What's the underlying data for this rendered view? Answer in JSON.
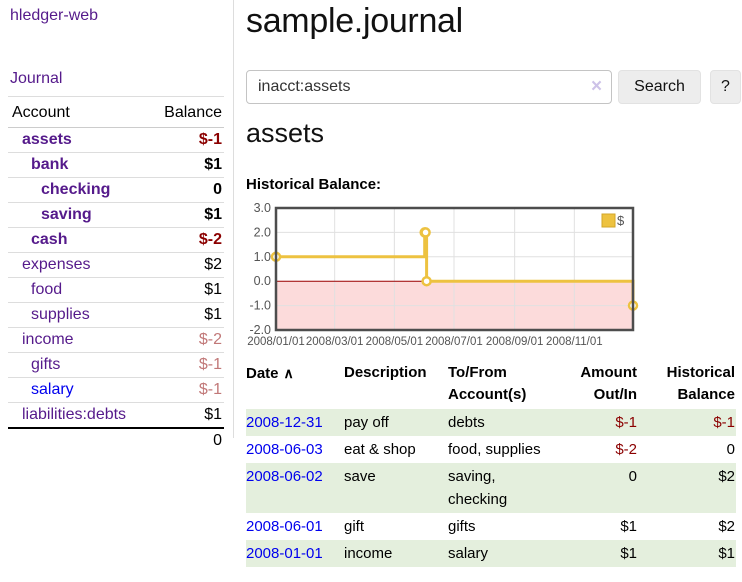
{
  "colors": {
    "link_purple": "#551a8b",
    "link_blue": "#0000ee",
    "neg_strong": "#8b0000",
    "neg_soft": "#c17878",
    "row_green": "#e4efdd",
    "grid": "#e0e0e0",
    "axis_text": "#545454",
    "plot_border": "#4d4d4d",
    "zero_line": "#990000",
    "neg_region": "#fcdbdb",
    "chart_gold": "#edc240",
    "chart_gold_border": "#d2a628"
  },
  "sidebar": {
    "brand": "hledger-web",
    "nav": [
      {
        "label": "Journal"
      }
    ],
    "accounts_table": {
      "col_account": "Account",
      "col_balance": "Balance",
      "rows": [
        {
          "account": "assets",
          "balance": "$-1",
          "level": 1,
          "emph": true,
          "balance_style": "neg_strong"
        },
        {
          "account": "bank",
          "balance": "$1",
          "level": 2,
          "emph": true,
          "balance_style": "normal"
        },
        {
          "account": "checking",
          "balance": "0",
          "level": 3,
          "emph": true,
          "balance_style": "normal"
        },
        {
          "account": "saving",
          "balance": "$1",
          "level": 3,
          "emph": true,
          "balance_style": "normal"
        },
        {
          "account": "cash",
          "balance": "$-2",
          "level": 2,
          "emph": true,
          "balance_style": "neg_strong"
        },
        {
          "account": "expenses",
          "balance": "$2",
          "level": 1,
          "emph": false,
          "balance_style": "normal"
        },
        {
          "account": "food",
          "balance": "$1",
          "level": 2,
          "emph": false,
          "balance_style": "normal"
        },
        {
          "account": "supplies",
          "balance": "$1",
          "level": 2,
          "emph": false,
          "balance_style": "normal"
        },
        {
          "account": "income",
          "balance": "$-2",
          "level": 1,
          "emph": false,
          "balance_style": "neg_soft"
        },
        {
          "account": "gifts",
          "balance": "$-1",
          "level": 2,
          "emph": false,
          "balance_style": "neg_soft"
        },
        {
          "account": "salary",
          "balance": "$-1",
          "level": 2,
          "emph": false,
          "balance_style": "neg_soft",
          "link_unvisited": true
        },
        {
          "account": "liabilities:debts",
          "balance": "$1",
          "level": 1,
          "emph": false,
          "balance_style": "normal"
        }
      ],
      "total": "0"
    }
  },
  "main": {
    "title": "sample.journal",
    "search": {
      "value": "inacct:assets",
      "clear_label": "×",
      "button_label": "Search",
      "help_label": "?"
    },
    "account_heading": "assets",
    "section_label": "Historical Balance:"
  },
  "chart_data": {
    "type": "line",
    "step": true,
    "title": "Historical Balance",
    "legend": {
      "position": "top-right",
      "entries": [
        {
          "label": "$",
          "color": "#edc240"
        }
      ]
    },
    "x_domain": [
      "2008-01-01",
      "2008-12-31"
    ],
    "x_ticks": [
      "2008/01/01",
      "2008/03/01",
      "2008/05/01",
      "2008/07/01",
      "2008/09/01",
      "2008/11/01"
    ],
    "y_ticks": [
      "3.0",
      "2.0",
      "1.0",
      "0.0",
      "-1.0",
      "-2.0"
    ],
    "ylim": [
      -2,
      3
    ],
    "grid": true,
    "negative_region_shaded": true,
    "series": [
      {
        "name": "$",
        "color": "#edc240",
        "points": [
          {
            "date": "2008-01-01",
            "value": 1
          },
          {
            "date": "2008-06-01",
            "value": 2
          },
          {
            "date": "2008-06-02",
            "value": 2
          },
          {
            "date": "2008-06-03",
            "value": 0
          },
          {
            "date": "2008-12-31",
            "value": -1
          }
        ]
      }
    ]
  },
  "register": {
    "columns": [
      {
        "label": "Date",
        "align": "left",
        "sort_icon": "∧"
      },
      {
        "label": "Description",
        "align": "left"
      },
      {
        "label": "To/From Account(s)",
        "align": "left"
      },
      {
        "label": "Amount Out/In",
        "align": "right"
      },
      {
        "label": "Historical Balance",
        "align": "right"
      }
    ],
    "rows": [
      {
        "date": "2008-12-31",
        "description": "pay off",
        "accounts": "debts",
        "amount": "$-1",
        "amount_neg": true,
        "balance": "$-1",
        "balance_neg": true
      },
      {
        "date": "2008-06-03",
        "description": "eat & shop",
        "accounts": "food, supplies",
        "amount": "$-2",
        "amount_neg": true,
        "balance": "0",
        "balance_neg": false
      },
      {
        "date": "2008-06-02",
        "description": "save",
        "accounts": "saving, checking",
        "amount": "0",
        "amount_neg": false,
        "balance": "$2",
        "balance_neg": false
      },
      {
        "date": "2008-06-01",
        "description": "gift",
        "accounts": "gifts",
        "amount": "$1",
        "amount_neg": false,
        "balance": "$2",
        "balance_neg": false
      },
      {
        "date": "2008-01-01",
        "description": "income",
        "accounts": "salary",
        "amount": "$1",
        "amount_neg": false,
        "balance": "$1",
        "balance_neg": false
      }
    ]
  }
}
